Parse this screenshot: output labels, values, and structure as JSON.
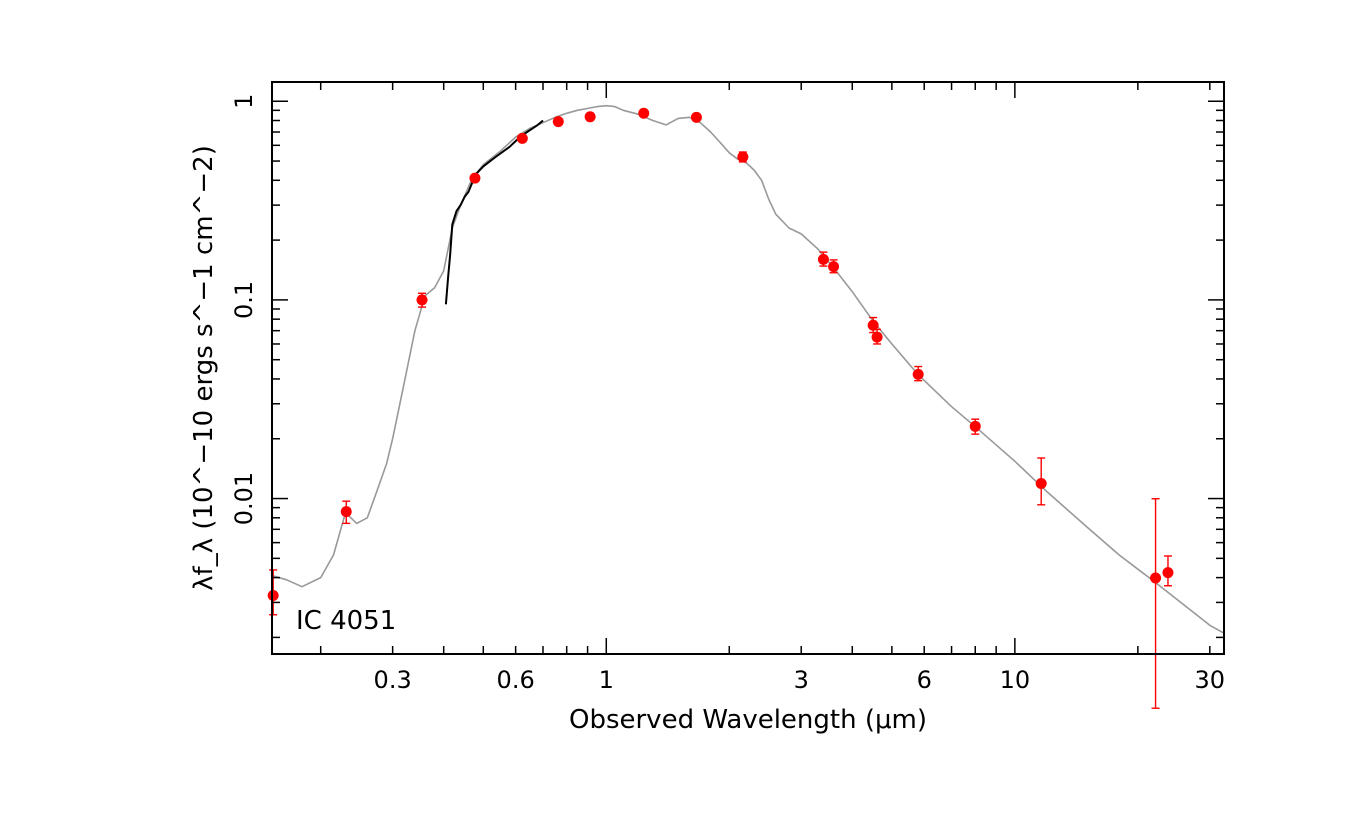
{
  "chart_data": {
    "type": "scatter",
    "title": "",
    "object_label": "IC 4051",
    "xlabel": "Observed Wavelength (μm)",
    "ylabel": "λf_λ (10^−10 ergs s^−1 cm^−2)",
    "xscale": "log",
    "yscale": "log",
    "xlim": [
      0.152,
      32.5
    ],
    "ylim": [
      0.00165,
      1.25
    ],
    "grid": false,
    "x_ticks": [
      {
        "value": 0.3,
        "label": "0.3"
      },
      {
        "value": 0.6,
        "label": "0.6"
      },
      {
        "value": 1,
        "label": "1"
      },
      {
        "value": 3,
        "label": "3"
      },
      {
        "value": 6,
        "label": "6"
      },
      {
        "value": 10,
        "label": "10"
      },
      {
        "value": 30,
        "label": "30"
      }
    ],
    "y_ticks": [
      {
        "value": 1,
        "label": "1"
      },
      {
        "value": 0.1,
        "label": "0.1"
      },
      {
        "value": 0.01,
        "label": "0.01"
      }
    ],
    "colors": {
      "photometry": "#ff0000",
      "model_sed": "#999999",
      "spectrum": "#000000",
      "frame": "#000000"
    },
    "series": [
      {
        "type": "scatter",
        "style": "photometry-points-with-error-bars",
        "points": [
          {
            "x": 0.153,
            "y": 0.00325,
            "yerr_low": 0.00065,
            "yerr_high": 0.00112
          },
          {
            "x": 0.231,
            "y": 0.0086,
            "yerr_low": 0.0011,
            "yerr_high": 0.0011
          },
          {
            "x": 0.354,
            "y": 0.1,
            "yerr_low": 0.008,
            "yerr_high": 0.008
          },
          {
            "x": 0.477,
            "y": 0.41,
            "yerr_low": 0.015,
            "yerr_high": 0.015
          },
          {
            "x": 0.623,
            "y": 0.65,
            "yerr_low": 0.02,
            "yerr_high": 0.02
          },
          {
            "x": 0.763,
            "y": 0.79,
            "yerr_low": 0.02,
            "yerr_high": 0.02
          },
          {
            "x": 0.913,
            "y": 0.835,
            "yerr_low": 0.02,
            "yerr_high": 0.02
          },
          {
            "x": 1.235,
            "y": 0.87,
            "yerr_low": 0.02,
            "yerr_high": 0.02
          },
          {
            "x": 1.662,
            "y": 0.83,
            "yerr_low": 0.02,
            "yerr_high": 0.02
          },
          {
            "x": 2.159,
            "y": 0.525,
            "yerr_low": 0.03,
            "yerr_high": 0.03
          },
          {
            "x": 3.4,
            "y": 0.16,
            "yerr_low": 0.012,
            "yerr_high": 0.014
          },
          {
            "x": 3.6,
            "y": 0.147,
            "yerr_low": 0.01,
            "yerr_high": 0.012
          },
          {
            "x": 4.5,
            "y": 0.0745,
            "yerr_low": 0.006,
            "yerr_high": 0.007
          },
          {
            "x": 4.6,
            "y": 0.065,
            "yerr_low": 0.005,
            "yerr_high": 0.006
          },
          {
            "x": 5.8,
            "y": 0.0422,
            "yerr_low": 0.003,
            "yerr_high": 0.004
          },
          {
            "x": 8.0,
            "y": 0.0231,
            "yerr_low": 0.002,
            "yerr_high": 0.002
          },
          {
            "x": 11.6,
            "y": 0.0119,
            "yerr_low": 0.0026,
            "yerr_high": 0.0041
          },
          {
            "x": 22.1,
            "y": 0.00398,
            "yerr_low": 0.0031,
            "yerr_high": 0.006
          },
          {
            "x": 23.7,
            "y": 0.00424,
            "yerr_low": 0.0006,
            "yerr_high": 0.0009
          }
        ]
      },
      {
        "type": "line",
        "style": "model-sed",
        "x": [
          0.152,
          0.165,
          0.18,
          0.2,
          0.215,
          0.23,
          0.245,
          0.26,
          0.275,
          0.29,
          0.3,
          0.32,
          0.34,
          0.36,
          0.38,
          0.4,
          0.42,
          0.44,
          0.47,
          0.5,
          0.55,
          0.6,
          0.65,
          0.7,
          0.75,
          0.8,
          0.85,
          0.9,
          0.95,
          1.0,
          1.05,
          1.1,
          1.2,
          1.3,
          1.4,
          1.5,
          1.6,
          1.7,
          1.8,
          1.9,
          2.0,
          2.1,
          2.2,
          2.3,
          2.4,
          2.5,
          2.6,
          2.8,
          3.0,
          3.3,
          3.6,
          4.0,
          4.5,
          5.0,
          5.8,
          7.0,
          8.0,
          10.0,
          12.0,
          15.0,
          18.0,
          22.0,
          26.0,
          30.0,
          32.5
        ],
        "y": [
          0.0041,
          0.0039,
          0.0036,
          0.004,
          0.0052,
          0.0085,
          0.0075,
          0.008,
          0.011,
          0.015,
          0.02,
          0.038,
          0.07,
          0.105,
          0.115,
          0.14,
          0.23,
          0.3,
          0.41,
          0.48,
          0.56,
          0.66,
          0.73,
          0.78,
          0.83,
          0.87,
          0.9,
          0.92,
          0.94,
          0.95,
          0.94,
          0.9,
          0.86,
          0.8,
          0.76,
          0.82,
          0.83,
          0.78,
          0.7,
          0.62,
          0.55,
          0.51,
          0.49,
          0.45,
          0.4,
          0.32,
          0.27,
          0.23,
          0.215,
          0.18,
          0.145,
          0.11,
          0.078,
          0.06,
          0.042,
          0.029,
          0.023,
          0.0154,
          0.0108,
          0.0072,
          0.0052,
          0.0038,
          0.0029,
          0.0023,
          0.0021
        ]
      },
      {
        "type": "line",
        "style": "optical-spectrum",
        "x": [
          0.405,
          0.41,
          0.415,
          0.42,
          0.43,
          0.44,
          0.45,
          0.46,
          0.47,
          0.48,
          0.5,
          0.52,
          0.54,
          0.56,
          0.58,
          0.6,
          0.62,
          0.64,
          0.66,
          0.68,
          0.7
        ],
        "y": [
          0.095,
          0.13,
          0.17,
          0.24,
          0.28,
          0.3,
          0.33,
          0.35,
          0.39,
          0.43,
          0.47,
          0.5,
          0.53,
          0.56,
          0.59,
          0.63,
          0.67,
          0.7,
          0.73,
          0.76,
          0.8
        ]
      }
    ]
  }
}
